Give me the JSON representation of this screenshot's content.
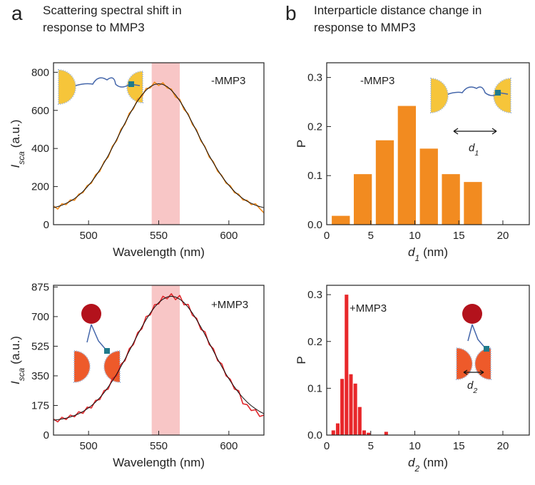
{
  "panels": [
    {
      "letter": "a",
      "title": [
        "Scattering spectral shift in",
        "response to MMP3"
      ]
    },
    {
      "letter": "b",
      "title": [
        "Interparticle distance change in",
        "response to MMP3"
      ]
    }
  ],
  "chart_data": [
    {
      "type": "line",
      "annotation": "-MMP3",
      "x_label": "Wavelength (nm)",
      "y_label": {
        "symbol": "I",
        "subscript": "sca",
        "unit": "(a.u.)"
      },
      "xlim": [
        475,
        625
      ],
      "xticks": [
        500,
        550,
        600
      ],
      "ylim": [
        0,
        850
      ],
      "yticks": [
        0,
        200,
        400,
        600,
        800
      ],
      "highlight": [
        545,
        565
      ],
      "highlight_color": "#f5b3b3",
      "x": [
        475,
        478,
        481,
        484,
        487,
        490,
        493,
        496,
        499,
        502,
        505,
        508,
        511,
        514,
        517,
        520,
        523,
        526,
        529,
        532,
        535,
        538,
        541,
        544,
        547,
        550,
        553,
        556,
        559,
        562,
        565,
        568,
        571,
        574,
        577,
        580,
        583,
        586,
        589,
        592,
        595,
        598,
        601,
        604,
        607,
        610,
        613,
        616,
        619,
        622,
        625
      ],
      "series": [
        {
          "color": "#f28a1e",
          "width": 1.6,
          "values": [
            98,
            82,
            110,
            105,
            130,
            128,
            160,
            168,
            205,
            218,
            262,
            280,
            330,
            355,
            412,
            440,
            500,
            528,
            585,
            608,
            660,
            672,
            715,
            718,
            748,
            730,
            745,
            718,
            712,
            670,
            658,
            605,
            582,
            526,
            498,
            440,
            410,
            355,
            330,
            280,
            258,
            218,
            205,
            168,
            160,
            130,
            128,
            105,
            110,
            85,
            62
          ]
        },
        {
          "color": "#111111",
          "width": 1,
          "values": [
            89,
            95,
            102,
            112,
            123,
            137,
            154,
            174,
            198,
            224,
            254,
            288,
            324,
            363,
            405,
            447,
            491,
            534,
            576,
            615,
            650,
            681,
            706,
            725,
            736,
            740,
            736,
            725,
            706,
            681,
            650,
            615,
            576,
            534,
            491,
            447,
            405,
            363,
            324,
            288,
            254,
            224,
            198,
            174,
            154,
            137,
            123,
            112,
            102,
            95,
            89
          ]
        }
      ]
    },
    {
      "type": "line",
      "annotation": "+MMP3",
      "x_label": "Wavelength (nm)",
      "y_label": {
        "symbol": "I",
        "subscript": "sca",
        "unit": "(a.u.)"
      },
      "xlim": [
        475,
        625
      ],
      "xticks": [
        500,
        550,
        600
      ],
      "ylim": [
        0,
        885
      ],
      "yticks": [
        0,
        175,
        350,
        525,
        700,
        875
      ],
      "highlight": [
        545,
        565
      ],
      "highlight_color": "#f5b3b3",
      "x": [
        475,
        478,
        481,
        484,
        487,
        490,
        493,
        496,
        499,
        502,
        505,
        508,
        511,
        514,
        517,
        520,
        523,
        526,
        529,
        532,
        535,
        538,
        541,
        544,
        547,
        550,
        553,
        556,
        559,
        562,
        565,
        568,
        571,
        574,
        577,
        580,
        583,
        586,
        589,
        592,
        595,
        598,
        601,
        604,
        607,
        610,
        613,
        616,
        619,
        622,
        625
      ],
      "series": [
        {
          "color": "#e0262a",
          "width": 1.6,
          "values": [
            95,
            78,
            105,
            92,
            118,
            108,
            138,
            128,
            165,
            160,
            205,
            210,
            262,
            272,
            335,
            350,
            418,
            440,
            510,
            535,
            605,
            628,
            700,
            710,
            770,
            775,
            820,
            805,
            835,
            800,
            825,
            770,
            772,
            708,
            690,
            625,
            610,
            535,
            510,
            440,
            420,
            350,
            330,
            272,
            262,
            185,
            180,
            145,
            150,
            110,
            118
          ]
        },
        {
          "color": "#111111",
          "width": 1,
          "values": [
            88,
            91,
            95,
            100,
            107,
            116,
            126,
            139,
            155,
            173,
            195,
            221,
            250,
            284,
            320,
            360,
            404,
            449,
            497,
            545,
            593,
            639,
            682,
            721,
            755,
            783,
            803,
            816,
            820,
            816,
            803,
            783,
            755,
            721,
            682,
            639,
            593,
            545,
            497,
            449,
            404,
            360,
            320,
            284,
            250,
            221,
            195,
            173,
            155,
            139,
            126
          ]
        }
      ]
    },
    {
      "type": "histogram",
      "annotation": "-MMP3",
      "color": "#f28b20",
      "x_label": {
        "symbol": "d",
        "subscript": "1",
        "unit": "(nm)"
      },
      "y_label": "P",
      "inset_label": {
        "symbol": "d",
        "subscript": "1"
      },
      "xlim": [
        0,
        23
      ],
      "xticks": [
        0,
        5,
        10,
        15,
        20
      ],
      "ylim": [
        0,
        0.33
      ],
      "yticks": [
        {
          "value": 0,
          "label": "0.0"
        },
        0.1,
        0.2,
        0.3
      ],
      "bins": [
        0.35,
        2.85,
        5.35,
        7.85,
        10.35,
        12.85,
        15.35,
        17.85
      ],
      "values": [
        0.018,
        0.103,
        0.172,
        0.242,
        0.155,
        0.103,
        0.087
      ]
    },
    {
      "type": "histogram",
      "annotation": "+MMP3",
      "color": "#e8272a",
      "x_label": {
        "symbol": "d",
        "subscript": "2",
        "unit": "(nm)"
      },
      "y_label": "P",
      "inset_label": {
        "symbol": "d",
        "subscript": "2"
      },
      "xlim": [
        0,
        23
      ],
      "xticks": [
        0,
        5,
        10,
        15,
        20
      ],
      "ylim": [
        0,
        0.32
      ],
      "yticks": [
        {
          "value": 0,
          "label": "0.0"
        },
        0.1,
        0.2,
        0.3
      ],
      "bins": [
        0.5,
        1,
        1.5,
        2,
        2.5,
        3,
        3.5,
        4,
        4.5,
        5,
        5.5,
        6,
        6.5,
        7
      ],
      "values": [
        0.01,
        0.025,
        0.12,
        0.3,
        0.13,
        0.11,
        0.06,
        0.01,
        0.005,
        0,
        0,
        0,
        0.007
      ]
    }
  ]
}
